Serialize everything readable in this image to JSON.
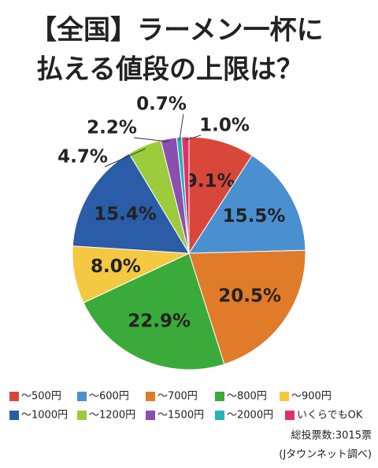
{
  "chart_data": {
    "type": "pie",
    "title": [
      "【全国】ラーメン一杯に",
      "払える値段の上限は？"
    ],
    "categories": [
      "～500円",
      "～600円",
      "～700円",
      "～800円",
      "～900円",
      "～1000円",
      "～1200円",
      "～1500円",
      "～2000円",
      "いくらでもOK"
    ],
    "values": [
      9.1,
      15.5,
      20.5,
      22.9,
      8.0,
      15.4,
      4.7,
      2.2,
      0.7,
      1.0
    ],
    "value_labels": [
      "9.1%",
      "15.5%",
      "20.5%",
      "22.9%",
      "8.0%",
      "15.4%",
      "4.7%",
      "2.2%",
      "0.7%",
      "1.0%"
    ],
    "colors": [
      "#d9473b",
      "#4a90d0",
      "#e07b2a",
      "#3aaa3a",
      "#f5c842",
      "#2a5ca8",
      "#9ccc3c",
      "#8a4fb0",
      "#2ab0b8",
      "#e0306a"
    ],
    "notes": [
      "総投票数:3015票",
      "(Jタウンネット調べ)"
    ]
  }
}
